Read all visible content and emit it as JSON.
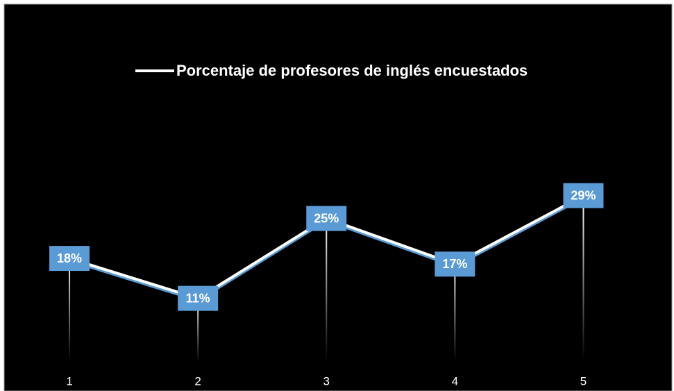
{
  "chart_data": {
    "type": "line",
    "categories": [
      "1",
      "2",
      "3",
      "4",
      "5"
    ],
    "series": [
      {
        "name": "Porcentaje de profesores de inglés encuestados",
        "color": "#ffffff",
        "values": [
          18,
          11,
          25,
          17,
          29
        ],
        "value_labels": [
          "18%",
          "11%",
          "25%",
          "17%",
          "29%"
        ]
      }
    ],
    "ylim": [
      0,
      60
    ],
    "label_color": "#5b9bd5",
    "background": "#000000",
    "legend": "top"
  }
}
